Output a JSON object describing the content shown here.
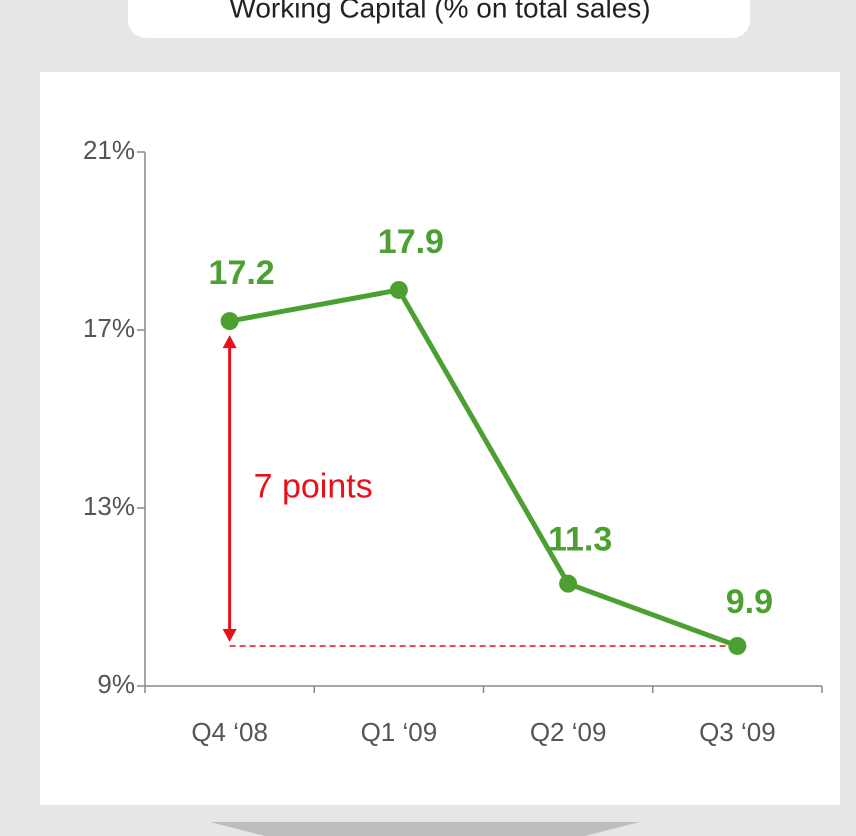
{
  "chart_data": {
    "type": "line",
    "title": "Working Capital (% on total sales)",
    "categories": [
      "Q4 ‘08",
      "Q1 ‘09",
      "Q2 ‘09",
      "Q3 ‘09"
    ],
    "series": [
      {
        "name": "Working Capital",
        "color": "#4ca032",
        "values": [
          17.2,
          17.9,
          11.3,
          9.9
        ]
      }
    ],
    "ylim": [
      9,
      21
    ],
    "yticks": [
      {
        "value": 9,
        "label": "9%"
      },
      {
        "value": 13,
        "label": "13%"
      },
      {
        "value": 17,
        "label": "17%"
      },
      {
        "value": 21,
        "label": "21%"
      }
    ],
    "annotation": {
      "text": "7 points",
      "color": "#e8101a"
    }
  }
}
